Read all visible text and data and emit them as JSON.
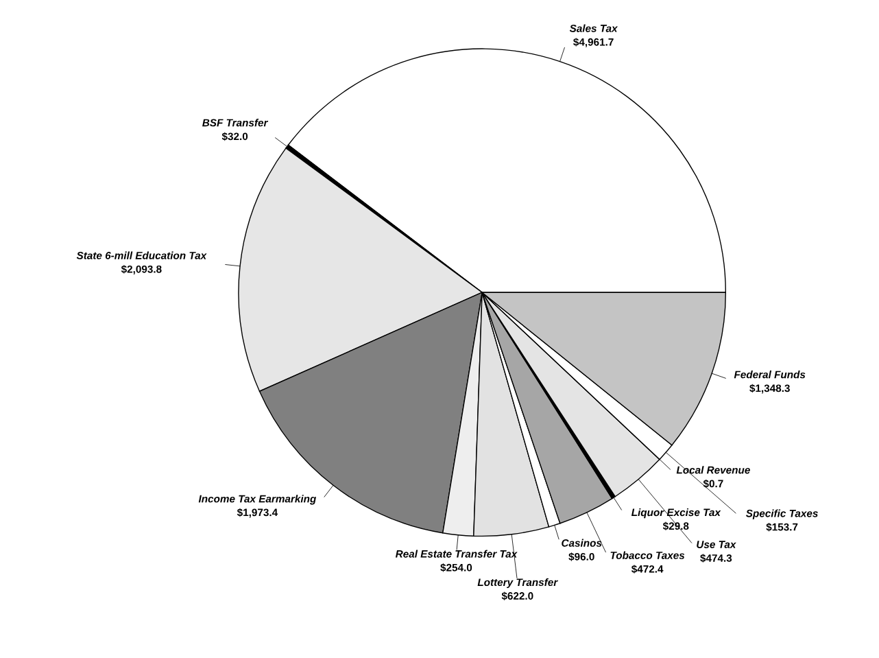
{
  "chart_data": {
    "type": "pie",
    "categories": [
      "Sales Tax",
      "BSF Transfer",
      "State 6-mill Education Tax",
      "Income Tax Earmarking",
      "Real Estate Transfer Tax",
      "Lottery Transfer",
      "Casinos",
      "Tobacco Taxes",
      "Liquor Excise Tax",
      "Use Tax",
      "Local Revenue",
      "Specific Taxes",
      "Federal Funds"
    ],
    "values": [
      4961.7,
      32.0,
      2093.8,
      1973.4,
      254.0,
      622.0,
      96.0,
      472.4,
      29.8,
      474.3,
      0.7,
      153.7,
      1348.3
    ],
    "value_labels": [
      "$4,961.7",
      "$32.0",
      "$2,093.8",
      "$1,973.4",
      "$254.0",
      "$622.0",
      "$96.0",
      "$472.4",
      "$29.8",
      "$474.3",
      "$0.7",
      "$153.7",
      "$1,348.3"
    ],
    "colors": [
      "#ffffff",
      "#000000",
      "#e6e6e6",
      "#808080",
      "#eeeeee",
      "#e2e2e2",
      "#ffffff",
      "#a6a6a6",
      "#000000",
      "#e4e4e4",
      "#ffffff",
      "#ffffff",
      "#c4c4c4"
    ]
  }
}
